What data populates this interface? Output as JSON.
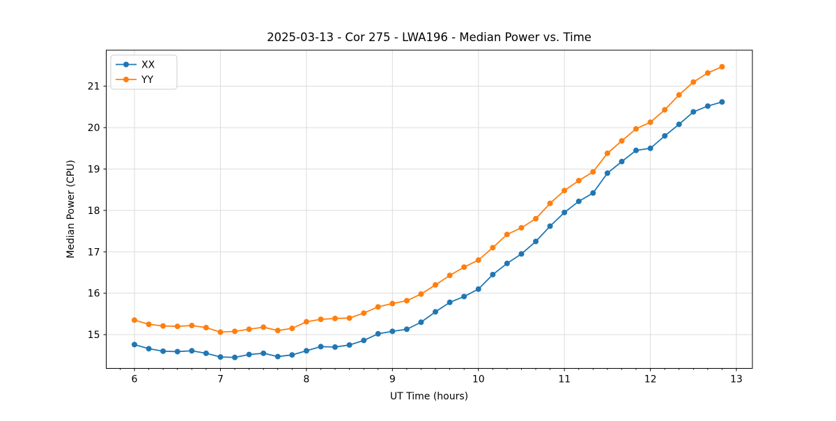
{
  "figure": {
    "background": "#ffffff",
    "plot_border_color": "#000000",
    "grid_color": "#dcdcdc"
  },
  "chart_data": {
    "type": "line",
    "title": "2025-03-13 - Cor 275 - LWA196 - Median Power vs. Time",
    "xlabel": "UT Time (hours)",
    "ylabel": "Median Power (CPU)",
    "xlim": [
      5.672,
      13.186
    ],
    "ylim": [
      14.185,
      21.87
    ],
    "x_ticks": [
      6,
      7,
      8,
      9,
      10,
      11,
      12,
      13
    ],
    "y_ticks": [
      15,
      16,
      17,
      18,
      19,
      20,
      21
    ],
    "x_minor_tick_step": 0.16667,
    "grid": true,
    "legend_position": "upper-left",
    "x": [
      6.0,
      6.167,
      6.333,
      6.5,
      6.667,
      6.833,
      7.0,
      7.167,
      7.333,
      7.5,
      7.667,
      7.833,
      8.0,
      8.167,
      8.333,
      8.5,
      8.667,
      8.833,
      9.0,
      9.167,
      9.333,
      9.5,
      9.667,
      9.833,
      10.0,
      10.167,
      10.333,
      10.5,
      10.667,
      10.833,
      11.0,
      11.167,
      11.333,
      11.5,
      11.667,
      11.833,
      12.0,
      12.167,
      12.333,
      12.5,
      12.667,
      12.833
    ],
    "series": [
      {
        "name": "XX",
        "color": "#1f77b4",
        "values": [
          14.76,
          14.66,
          14.6,
          14.59,
          14.61,
          14.55,
          14.46,
          14.45,
          14.52,
          14.55,
          14.47,
          14.51,
          14.61,
          14.71,
          14.7,
          14.75,
          14.86,
          15.02,
          15.08,
          15.13,
          15.3,
          15.55,
          15.78,
          15.92,
          16.1,
          16.45,
          16.72,
          16.95,
          17.25,
          17.62,
          17.95,
          18.22,
          18.42,
          18.9,
          19.18,
          19.45,
          19.5,
          19.8,
          20.08,
          20.38,
          20.52,
          20.62
        ]
      },
      {
        "name": "YY",
        "color": "#ff7f0e",
        "values": [
          15.35,
          15.25,
          15.21,
          15.2,
          15.22,
          15.17,
          15.06,
          15.08,
          15.13,
          15.18,
          15.1,
          15.15,
          15.31,
          15.37,
          15.39,
          15.4,
          15.52,
          15.67,
          15.75,
          15.82,
          15.98,
          16.2,
          16.43,
          16.63,
          16.8,
          17.1,
          17.42,
          17.58,
          17.8,
          18.17,
          18.48,
          18.72,
          18.93,
          19.38,
          19.68,
          19.97,
          20.13,
          20.43,
          20.79,
          21.1,
          21.32,
          21.47
        ]
      }
    ]
  }
}
